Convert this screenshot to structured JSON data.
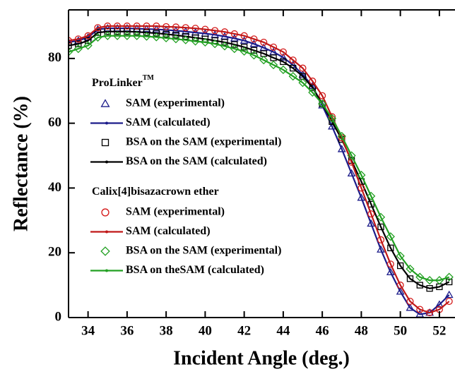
{
  "chart_data": {
    "type": "line",
    "x_label": "Incident Angle (deg.)",
    "y_label": "Reflectance (%)",
    "xlim": [
      33,
      52.8
    ],
    "ylim": [
      0,
      95
    ],
    "xticks": [
      34,
      36,
      38,
      40,
      42,
      44,
      46,
      48,
      50,
      52
    ],
    "yticks": [
      0,
      20,
      40,
      60,
      80
    ],
    "x": [
      33,
      33.5,
      34,
      34.5,
      35,
      35.5,
      36,
      36.5,
      37,
      37.5,
      38,
      38.5,
      39,
      39.5,
      40,
      40.5,
      41,
      41.5,
      42,
      42.5,
      43,
      43.5,
      44,
      44.5,
      45,
      45.5,
      46,
      46.5,
      47,
      47.5,
      48,
      48.5,
      49,
      49.5,
      50,
      50.5,
      51,
      51.5,
      52,
      52.5
    ],
    "legend_groups": [
      {
        "title": "ProLinker",
        "title_sup": "TM",
        "series": [
          {
            "name": "SAM (experimental)",
            "marker": "triangle",
            "color": "#1c1c8a",
            "values": [
              85,
              85.5,
              86.5,
              89,
              89.3,
              89.3,
              89.3,
              89.2,
              89.1,
              89,
              88.8,
              88.6,
              88.3,
              88,
              87.7,
              87.3,
              86.8,
              86.2,
              85.5,
              84.5,
              83.3,
              82,
              80.3,
              78,
              75,
              71.5,
              65.5,
              59,
              52,
              44.5,
              37,
              29,
              21,
              14,
              8,
              3,
              1,
              1.5,
              4,
              7
            ]
          },
          {
            "name": "SAM (calculated)",
            "marker": "line",
            "color": "#1c1c8a",
            "values": [
              85,
              85.5,
              86.5,
              89,
              89.3,
              89.3,
              89.3,
              89.2,
              89.1,
              89,
              88.8,
              88.6,
              88.3,
              88,
              87.7,
              87.3,
              86.8,
              86.2,
              85.5,
              84.5,
              83.3,
              82,
              80.3,
              78,
              75,
              71.5,
              65.5,
              59,
              52,
              44.5,
              37,
              29,
              21,
              14,
              8,
              3,
              1,
              1.5,
              4,
              7
            ]
          },
          {
            "name": "BSA on the SAM (experimental)",
            "marker": "square",
            "color": "#000000",
            "values": [
              84,
              84.5,
              85.5,
              88,
              88.3,
              88.3,
              88.3,
              88.2,
              88,
              87.8,
              87.5,
              87.2,
              86.8,
              86.4,
              86,
              85.5,
              85,
              84.3,
              83.5,
              82.5,
              81.5,
              80.2,
              79,
              77,
              74.5,
              71,
              66,
              60.5,
              55,
              48.5,
              42,
              35,
              28,
              21.5,
              16,
              12,
              10,
              9,
              9.5,
              11
            ]
          },
          {
            "name": "BSA on the SAM (calculated)",
            "marker": "line",
            "color": "#000000",
            "values": [
              84,
              84.5,
              85.5,
              88,
              88.3,
              88.3,
              88.3,
              88.2,
              88,
              87.8,
              87.5,
              87.2,
              86.8,
              86.4,
              86,
              85.5,
              85,
              84.3,
              83.5,
              82.5,
              81.5,
              80.2,
              79,
              77,
              74.5,
              71,
              66,
              60.5,
              55,
              48.5,
              42,
              35,
              28,
              21.5,
              16,
              12,
              10,
              9,
              9.5,
              11
            ]
          }
        ]
      },
      {
        "title": "Calix[4]bisazacrown ether",
        "series": [
          {
            "name": "SAM (experimental)",
            "marker": "circle",
            "color": "#d41818",
            "values": [
              85.5,
              86,
              87,
              89.5,
              90,
              90,
              90,
              90,
              90,
              90,
              89.8,
              89.7,
              89.5,
              89.3,
              89,
              88.6,
              88.2,
              87.6,
              87,
              86,
              85,
              83.5,
              82,
              79.5,
              77,
              73,
              68.5,
              62,
              55.5,
              48,
              40,
              32,
              24,
              16.5,
              10,
              5,
              2.5,
              1.5,
              2.5,
              5
            ]
          },
          {
            "name": "SAM (calculated)",
            "marker": "line",
            "color": "#c01818",
            "values": [
              85.5,
              86,
              87,
              89.5,
              90,
              90,
              90,
              90,
              90,
              90,
              89.8,
              89.7,
              89.5,
              89.3,
              89,
              88.6,
              88.2,
              87.6,
              87,
              86,
              85,
              83.5,
              82,
              79.5,
              77,
              73,
              68.5,
              62,
              55.5,
              48,
              40,
              32,
              24,
              16.5,
              10,
              5,
              2.5,
              1.5,
              2.5,
              5
            ]
          },
          {
            "name": "BSA on the SAM (experimental)",
            "marker": "diamond",
            "color": "#22a022",
            "values": [
              82,
              83,
              84,
              86.5,
              87,
              87,
              87,
              87,
              86.8,
              86.6,
              86.3,
              86,
              85.7,
              85.3,
              85,
              84.5,
              83.8,
              83,
              82.2,
              81,
              79.5,
              78,
              76.5,
              74.5,
              72.5,
              69.5,
              66,
              61.5,
              56,
              50,
              44,
              37.5,
              31,
              25,
              19,
              15,
              12.5,
              11.5,
              11.5,
              12.5
            ]
          },
          {
            "name": "BSA on theSAM (calculated)",
            "marker": "line",
            "color": "#22a022",
            "values": [
              82,
              83,
              84,
              86.5,
              87,
              87,
              87,
              87,
              86.8,
              86.6,
              86.3,
              86,
              85.7,
              85.3,
              85,
              84.5,
              83.8,
              83,
              82.2,
              81,
              79.5,
              78,
              76.5,
              74.5,
              72.5,
              69.5,
              66,
              61.5,
              56,
              50,
              44,
              37.5,
              31,
              25,
              19,
              15,
              12.5,
              11.5,
              11.5,
              12.5
            ]
          }
        ]
      }
    ]
  }
}
